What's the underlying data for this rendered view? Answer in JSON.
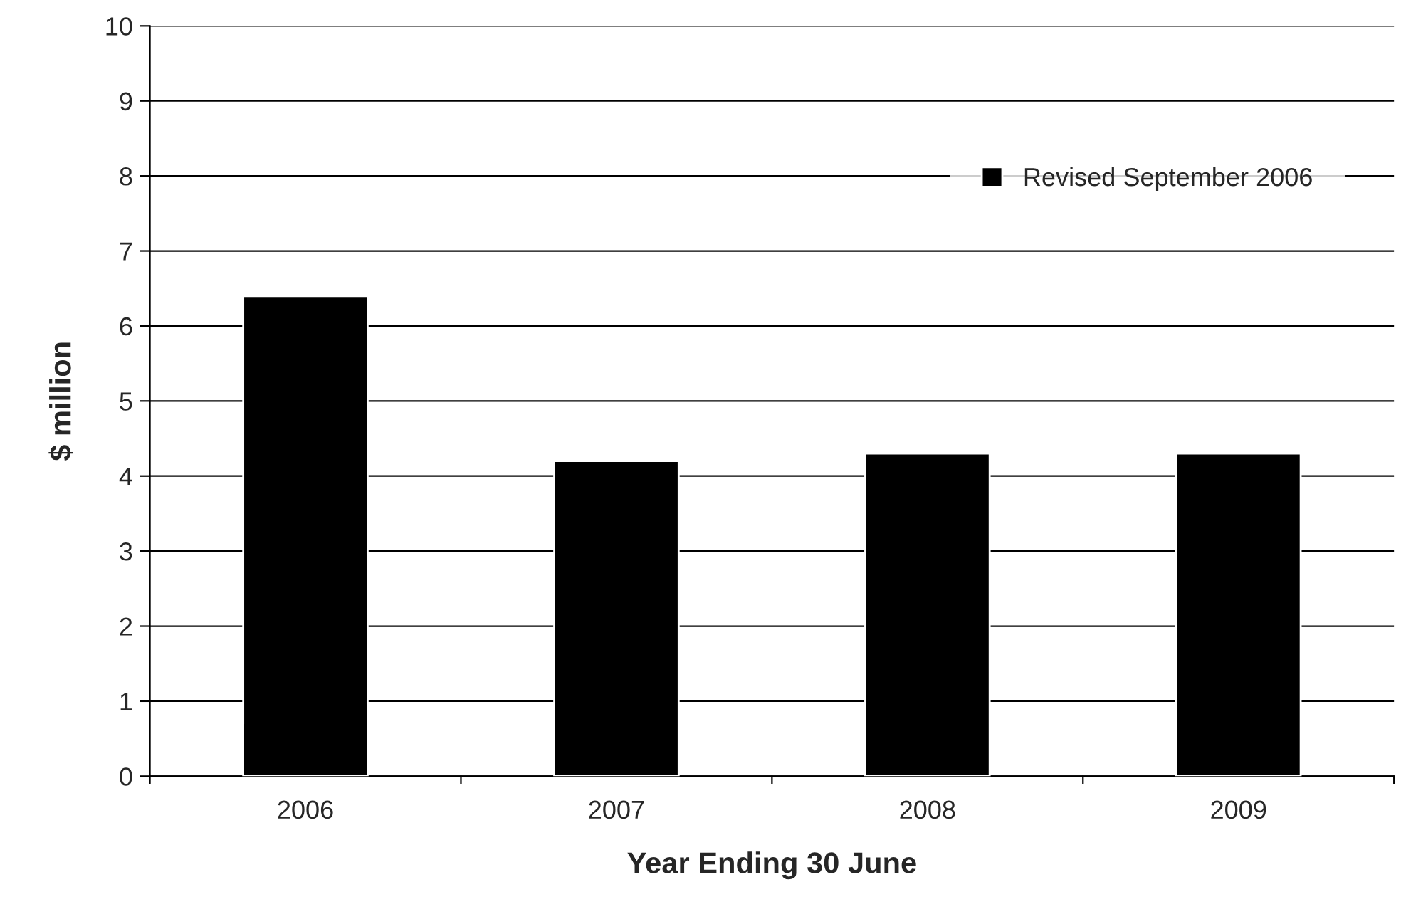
{
  "chart_data": {
    "type": "bar",
    "xlabel": "Year Ending 30 June",
    "ylabel": "$ million",
    "categories": [
      "2006",
      "2007",
      "2008",
      "2009"
    ],
    "series": [
      {
        "name": "Revised September 2006",
        "color": "#000000",
        "values": [
          6.4,
          4.2,
          4.3,
          4.3
        ]
      }
    ],
    "ylim": [
      0,
      10
    ],
    "yticks": [
      0,
      1,
      2,
      3,
      4,
      5,
      6,
      7,
      8,
      9,
      10
    ],
    "grid": "y",
    "legend": "top right"
  }
}
